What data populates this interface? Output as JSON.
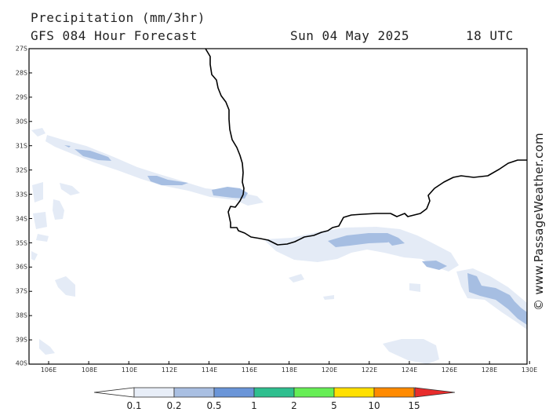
{
  "header": {
    "title": "Precipitation (mm/3hr)",
    "model": "GFS 084 Hour Forecast",
    "date": "Sun 04 May 2025",
    "time": "18 UTC"
  },
  "map": {
    "lat_labels": [
      "27S",
      "28S",
      "29S",
      "30S",
      "31S",
      "32S",
      "33S",
      "34S",
      "35S",
      "36S",
      "37S",
      "38S",
      "39S",
      "40S"
    ],
    "lon_labels": [
      "106E",
      "108E",
      "110E",
      "112E",
      "114E",
      "116E",
      "118E",
      "120E",
      "122E",
      "124E",
      "126E",
      "128E",
      "130E"
    ],
    "coastline_color": "#000000",
    "frame_color": "#000000"
  },
  "legend": {
    "labels": [
      "0.1",
      "0.2",
      "0.5",
      "1",
      "2",
      "5",
      "10",
      "15"
    ],
    "colors": [
      "#ffffff",
      "#e8eef8",
      "#a9bfe2",
      "#6a95d8",
      "#2fbf8f",
      "#66ee55",
      "#ffe000",
      "#ff8a00",
      "#e82c2c"
    ]
  },
  "watermark": "© www.PassageWeather.com",
  "precip_colors": {
    "light": "#e4ebf6",
    "medium": "#a6bee2"
  }
}
